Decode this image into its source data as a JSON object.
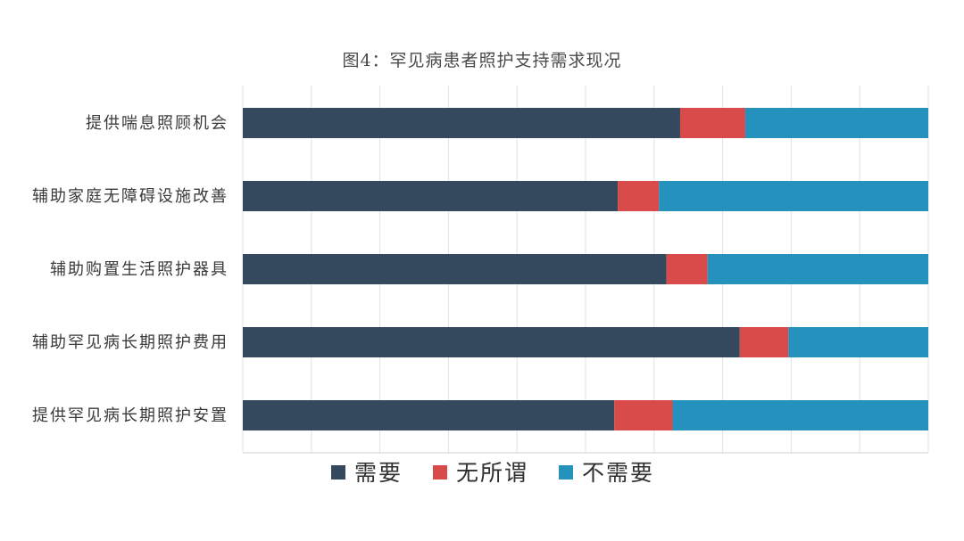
{
  "chart_data": {
    "type": "bar",
    "orientation": "horizontal",
    "stacked": true,
    "title": "图4：罕见病患者照护支持需求现况",
    "categories": [
      "提供喘息照顾机会",
      "辅助家庭无障碍设施改善",
      "辅助购置生活照护器具",
      "辅助罕见病长期照护费用",
      "提供罕见病长期照护安置"
    ],
    "series": [
      {
        "name": "需要",
        "color": "#34495e",
        "values": [
          63.8,
          54.7,
          61.8,
          72.5,
          54.2
        ]
      },
      {
        "name": "无所谓",
        "color": "#d94a4a",
        "values": [
          9.5,
          6.0,
          6.0,
          7.1,
          8.5
        ]
      },
      {
        "name": "不需要",
        "color": "#2591bd",
        "values": [
          26.7,
          39.3,
          32.2,
          20.4,
          37.3
        ]
      }
    ],
    "xlim": [
      0,
      100
    ],
    "grid": true,
    "legend_position": "bottom-center"
  }
}
